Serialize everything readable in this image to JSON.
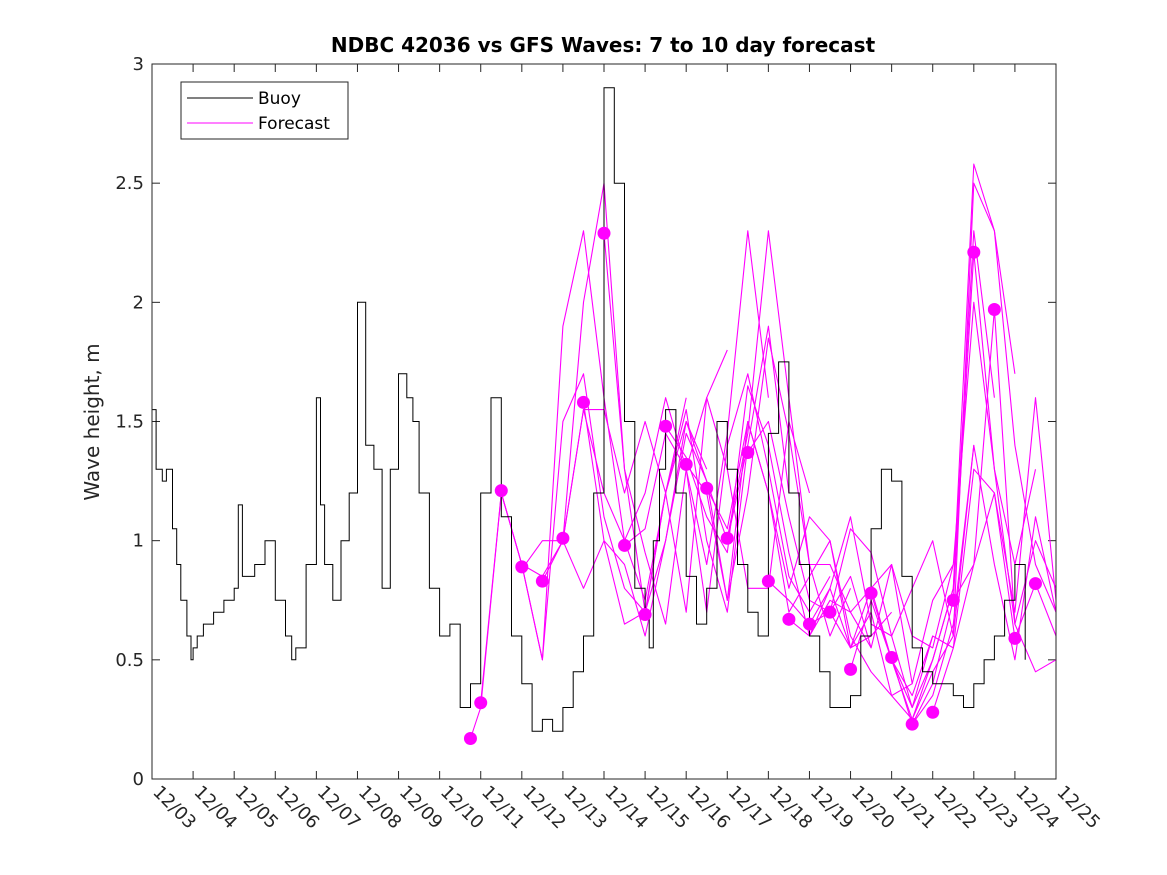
{
  "chart_data": {
    "type": "line",
    "title": "NDBC 42036 vs GFS Waves: 7 to 10 day forecast",
    "xlabel": "",
    "ylabel": "Wave height, m",
    "xlim": [
      0,
      22
    ],
    "ylim": [
      0,
      3
    ],
    "yticks": [
      0,
      0.5,
      1,
      1.5,
      2,
      2.5,
      3
    ],
    "ytick_labels": [
      "0",
      "0.5",
      "1",
      "1.5",
      "2",
      "2.5",
      "3"
    ],
    "xtick_labels": [
      "12/03",
      "12/04",
      "12/05",
      "12/06",
      "12/07",
      "12/08",
      "12/09",
      "12/10",
      "12/11",
      "12/12",
      "12/13",
      "12/14",
      "12/15",
      "12/16",
      "12/17",
      "12/18",
      "12/19",
      "12/20",
      "12/21",
      "12/22",
      "12/23",
      "12/24",
      "12/25"
    ],
    "x_units": "days since 12/03 00:00",
    "legend": {
      "position": "top-left",
      "entries": [
        {
          "name": "Buoy",
          "color": "#000000"
        },
        {
          "name": "Forecast",
          "color": "#ff00ff"
        }
      ]
    },
    "series": [
      {
        "name": "Buoy",
        "color": "#000000",
        "x": [
          0,
          0.1,
          0.25,
          0.35,
          0.5,
          0.6,
          0.7,
          0.85,
          0.95,
          1.0,
          1.1,
          1.25,
          1.5,
          1.75,
          2.0,
          2.1,
          2.2,
          2.35,
          2.5,
          2.75,
          3.0,
          3.25,
          3.4,
          3.5,
          3.75,
          4.0,
          4.1,
          4.2,
          4.4,
          4.6,
          4.8,
          5.0,
          5.2,
          5.4,
          5.6,
          5.8,
          6.0,
          6.2,
          6.35,
          6.5,
          6.75,
          7.0,
          7.25,
          7.5,
          7.75,
          8.0,
          8.25,
          8.5,
          8.75,
          9.0,
          9.25,
          9.5,
          9.75,
          10.0,
          10.25,
          10.5,
          10.75,
          11.0,
          11.25,
          11.5,
          11.75,
          12.0,
          12.1,
          12.2,
          12.35,
          12.5,
          12.75,
          13.0,
          13.25,
          13.5,
          13.75,
          14.0,
          14.25,
          14.5,
          14.75,
          15.0,
          15.25,
          15.5,
          15.75,
          16.0,
          16.25,
          16.5,
          16.75,
          17.0,
          17.25,
          17.5,
          17.75,
          18.0,
          18.25,
          18.5,
          18.75,
          19.0,
          19.25,
          19.5,
          19.75,
          20.0,
          20.25,
          20.5,
          20.75,
          21.0,
          21.25
        ],
        "values": [
          1.55,
          1.3,
          1.25,
          1.3,
          1.05,
          0.9,
          0.75,
          0.6,
          0.5,
          0.55,
          0.6,
          0.65,
          0.7,
          0.75,
          0.8,
          1.15,
          0.85,
          0.85,
          0.9,
          1.0,
          0.75,
          0.6,
          0.5,
          0.55,
          0.9,
          1.6,
          1.15,
          0.9,
          0.75,
          1.0,
          1.2,
          2.0,
          1.4,
          1.3,
          0.8,
          1.3,
          1.7,
          1.6,
          1.5,
          1.2,
          0.8,
          0.6,
          0.65,
          0.3,
          0.4,
          1.2,
          1.6,
          1.1,
          0.6,
          0.4,
          0.2,
          0.25,
          0.2,
          0.3,
          0.45,
          0.6,
          1.2,
          2.9,
          2.5,
          1.5,
          0.8,
          0.7,
          0.55,
          1.0,
          1.3,
          1.55,
          1.2,
          0.85,
          0.65,
          0.8,
          1.5,
          1.3,
          0.9,
          0.7,
          0.6,
          1.45,
          1.75,
          1.2,
          0.9,
          0.6,
          0.45,
          0.3,
          0.3,
          0.35,
          0.6,
          1.05,
          1.3,
          1.25,
          0.85,
          0.55,
          0.45,
          0.4,
          0.4,
          0.35,
          0.3,
          0.4,
          0.5,
          0.6,
          0.75,
          0.9,
          0.5
        ]
      },
      {
        "name": "Forecast",
        "color": "#ff00ff",
        "runs": [
          {
            "x": [
              7.75,
              8.0,
              8.5,
              9.0,
              9.5,
              10.0,
              10.5,
              11.0,
              11.5,
              12.0
            ],
            "values": [
              0.17,
              0.3,
              1.2,
              0.9,
              0.5,
              1.5,
              1.7,
              1.1,
              0.8,
              0.7
            ]
          },
          {
            "x": [
              8.0,
              8.5,
              9.0,
              9.5,
              10.0,
              10.5,
              11.0,
              11.5,
              12.0,
              12.5,
              13.0
            ],
            "values": [
              0.32,
              1.2,
              0.9,
              0.5,
              1.9,
              2.3,
              1.6,
              1.0,
              0.75,
              1.2,
              1.6
            ]
          },
          {
            "x": [
              8.5,
              9.0,
              9.5,
              10.0,
              10.5,
              11.0,
              11.5,
              12.0,
              12.5,
              13.0,
              13.5
            ],
            "values": [
              1.2,
              0.9,
              0.85,
              1.0,
              2.0,
              2.5,
              1.3,
              0.7,
              1.0,
              1.5,
              1.3
            ]
          },
          {
            "x": [
              9.0,
              9.5,
              10.0,
              10.5,
              11.0,
              11.5,
              12.0,
              12.5,
              13.0,
              13.5,
              14.0
            ],
            "values": [
              0.88,
              1.0,
              1.0,
              1.55,
              1.55,
              1.2,
              1.5,
              1.2,
              0.7,
              1.6,
              1.8
            ]
          },
          {
            "x": [
              9.5,
              10.0,
              10.5,
              11.0,
              11.5,
              12.0,
              12.5,
              13.0,
              13.5,
              14.0,
              14.5
            ],
            "values": [
              0.83,
              1.0,
              0.8,
              1.0,
              0.9,
              0.6,
              1.0,
              1.45,
              1.25,
              1.0,
              1.4
            ]
          },
          {
            "x": [
              10.0,
              10.5,
              11.0,
              11.5,
              12.0,
              12.5,
              13.0,
              13.5,
              14.0,
              14.5,
              15.0
            ],
            "values": [
              1.0,
              1.55,
              1.2,
              1.0,
              1.2,
              1.6,
              1.3,
              0.9,
              1.45,
              2.3,
              1.6
            ]
          },
          {
            "x": [
              10.5,
              11.0,
              11.5,
              12.0,
              12.5,
              13.0,
              13.5,
              14.0,
              14.5,
              15.0,
              15.5
            ],
            "values": [
              1.58,
              1.0,
              0.65,
              0.7,
              1.2,
              1.55,
              1.0,
              0.7,
              1.4,
              1.9,
              1.2
            ]
          },
          {
            "x": [
              11.0,
              11.5,
              12.0,
              12.5,
              13.0,
              13.5,
              14.0,
              14.5,
              15.0,
              15.5,
              16.0
            ],
            "values": [
              2.29,
              1.3,
              0.95,
              0.65,
              1.3,
              1.6,
              1.3,
              0.8,
              0.8,
              1.5,
              1.2
            ]
          },
          {
            "x": [
              11.5,
              12.0,
              12.5,
              13.0,
              13.5,
              14.0,
              14.5,
              15.0,
              15.5,
              16.0,
              16.5
            ],
            "values": [
              0.98,
              1.05,
              1.45,
              1.3,
              0.7,
              1.4,
              1.7,
              1.3,
              0.85,
              0.7,
              0.85
            ]
          },
          {
            "x": [
              12.0,
              12.5,
              13.0,
              13.5,
              14.0,
              14.5,
              15.0,
              15.5,
              16.0,
              16.5,
              17.0
            ],
            "values": [
              0.69,
              1.2,
              1.5,
              1.25,
              0.75,
              1.2,
              1.85,
              1.45,
              0.9,
              0.6,
              0.8
            ]
          },
          {
            "x": [
              12.5,
              13.0,
              13.5,
              14.0,
              14.5,
              15.0,
              15.5,
              16.0,
              16.5,
              17.0,
              17.5
            ],
            "values": [
              1.48,
              1.35,
              1.1,
              0.95,
              1.65,
              1.4,
              0.95,
              0.6,
              0.75,
              0.7,
              0.55
            ]
          },
          {
            "x": [
              13.0,
              13.5,
              14.0,
              14.5,
              15.0,
              15.5,
              16.0,
              16.5,
              17.0,
              17.5,
              18.0
            ],
            "values": [
              1.32,
              1.2,
              0.75,
              1.5,
              1.2,
              0.7,
              0.85,
              1.0,
              0.55,
              0.6,
              0.7
            ]
          },
          {
            "x": [
              13.5,
              14.0,
              14.5,
              15.0,
              15.5,
              16.0,
              16.5,
              17.0,
              17.5,
              18.0,
              18.5
            ],
            "values": [
              1.22,
              1.05,
              1.5,
              1.2,
              0.8,
              1.1,
              1.0,
              0.6,
              0.45,
              0.35,
              0.4
            ]
          },
          {
            "x": [
              14.0,
              14.5,
              15.0,
              15.5,
              16.0,
              16.5,
              17.0,
              17.5,
              18.0,
              18.5,
              19.0
            ],
            "values": [
              1.01,
              1.45,
              2.3,
              1.6,
              0.9,
              0.9,
              0.7,
              0.8,
              0.5,
              0.3,
              0.6
            ]
          },
          {
            "x": [
              14.5,
              15.0,
              15.5,
              16.0,
              16.5,
              17.0,
              17.5,
              18.0,
              18.5,
              19.0,
              19.5
            ],
            "values": [
              1.37,
              1.5,
              1.1,
              0.75,
              0.7,
              0.85,
              0.55,
              0.9,
              0.6,
              0.55,
              0.9
            ]
          },
          {
            "x": [
              15.0,
              15.5,
              16.0,
              16.5,
              17.0,
              17.5,
              18.0,
              18.5,
              19.0,
              19.5,
              20.0
            ],
            "values": [
              0.83,
              0.75,
              0.65,
              0.8,
              0.55,
              0.7,
              0.35,
              0.25,
              0.45,
              0.6,
              1.4
            ]
          },
          {
            "x": [
              15.5,
              16.0,
              16.5,
              17.0,
              17.5,
              18.0,
              18.5,
              19.0,
              19.5,
              20.0,
              20.5
            ],
            "values": [
              0.67,
              0.6,
              0.8,
              1.1,
              0.65,
              0.6,
              0.3,
              0.5,
              0.8,
              2.3,
              1.6
            ]
          },
          {
            "x": [
              16.0,
              16.5,
              17.0,
              17.5,
              18.0,
              18.5,
              19.0,
              19.5,
              20.0,
              20.5,
              21.0
            ],
            "values": [
              0.65,
              0.7,
              1.05,
              0.95,
              0.6,
              0.8,
              1.0,
              0.6,
              2.5,
              2.3,
              1.7
            ]
          },
          {
            "x": [
              16.5,
              17.0,
              17.5,
              18.0,
              18.5,
              19.0,
              19.5,
              20.0,
              20.5,
              21.0,
              21.5
            ],
            "values": [
              0.7,
              0.55,
              0.8,
              0.9,
              0.4,
              0.75,
              0.9,
              2.0,
              1.3,
              0.9,
              1.3
            ]
          },
          {
            "x": [
              17.0,
              17.5,
              18.0,
              18.5,
              19.0,
              19.5,
              20.0,
              20.5,
              21.0,
              21.5,
              22.0
            ],
            "values": [
              0.46,
              0.75,
              0.5,
              0.35,
              0.6,
              0.55,
              1.3,
              1.2,
              0.7,
              1.6,
              0.75
            ]
          },
          {
            "x": [
              17.5,
              18.0,
              18.5,
              19.0,
              19.5,
              20.0,
              20.5,
              21.0,
              21.5,
              22.0
            ],
            "values": [
              0.78,
              0.5,
              0.25,
              0.5,
              0.8,
              2.58,
              2.3,
              1.4,
              0.9,
              0.7
            ]
          },
          {
            "x": [
              18.0,
              18.5,
              19.0,
              19.5,
              20.0,
              20.5,
              21.0,
              21.5,
              22.0
            ],
            "values": [
              0.51,
              0.23,
              0.4,
              0.75,
              2.21,
              1.3,
              0.65,
              1.0,
              0.8
            ]
          },
          {
            "x": [
              18.5,
              19.0,
              19.5,
              20.0,
              20.5,
              21.0,
              21.5,
              22.0
            ],
            "values": [
              0.23,
              0.35,
              0.65,
              1.4,
              0.9,
              0.5,
              1.1,
              0.7
            ]
          },
          {
            "x": [
              19.0,
              19.5,
              20.0,
              20.5,
              21.0,
              21.5,
              22.0
            ],
            "values": [
              0.28,
              0.55,
              0.9,
              1.97,
              0.65,
              0.45,
              0.5
            ]
          },
          {
            "x": [
              19.5,
              20.0,
              20.5,
              21.0,
              21.5,
              22.0
            ],
            "values": [
              0.75,
              0.9,
              1.2,
              0.59,
              0.82,
              0.6
            ]
          }
        ],
        "markers": {
          "x": [
            7.75,
            8.0,
            8.5,
            9.0,
            9.5,
            10.0,
            10.5,
            11.0,
            11.5,
            12.0,
            12.5,
            13.0,
            13.5,
            14.0,
            14.5,
            15.0,
            15.5,
            16.0,
            16.5,
            17.0,
            17.5,
            18.0,
            18.5,
            19.0,
            19.5,
            20.0,
            20.5,
            21.0,
            21.5
          ],
          "values": [
            0.17,
            0.32,
            1.21,
            0.89,
            0.83,
            1.01,
            1.58,
            2.29,
            0.98,
            0.69,
            1.48,
            1.32,
            1.22,
            1.01,
            1.37,
            0.83,
            0.67,
            0.65,
            0.7,
            0.46,
            0.78,
            0.51,
            0.23,
            0.28,
            0.75,
            2.21,
            1.97,
            0.59,
            0.82
          ]
        }
      }
    ]
  }
}
